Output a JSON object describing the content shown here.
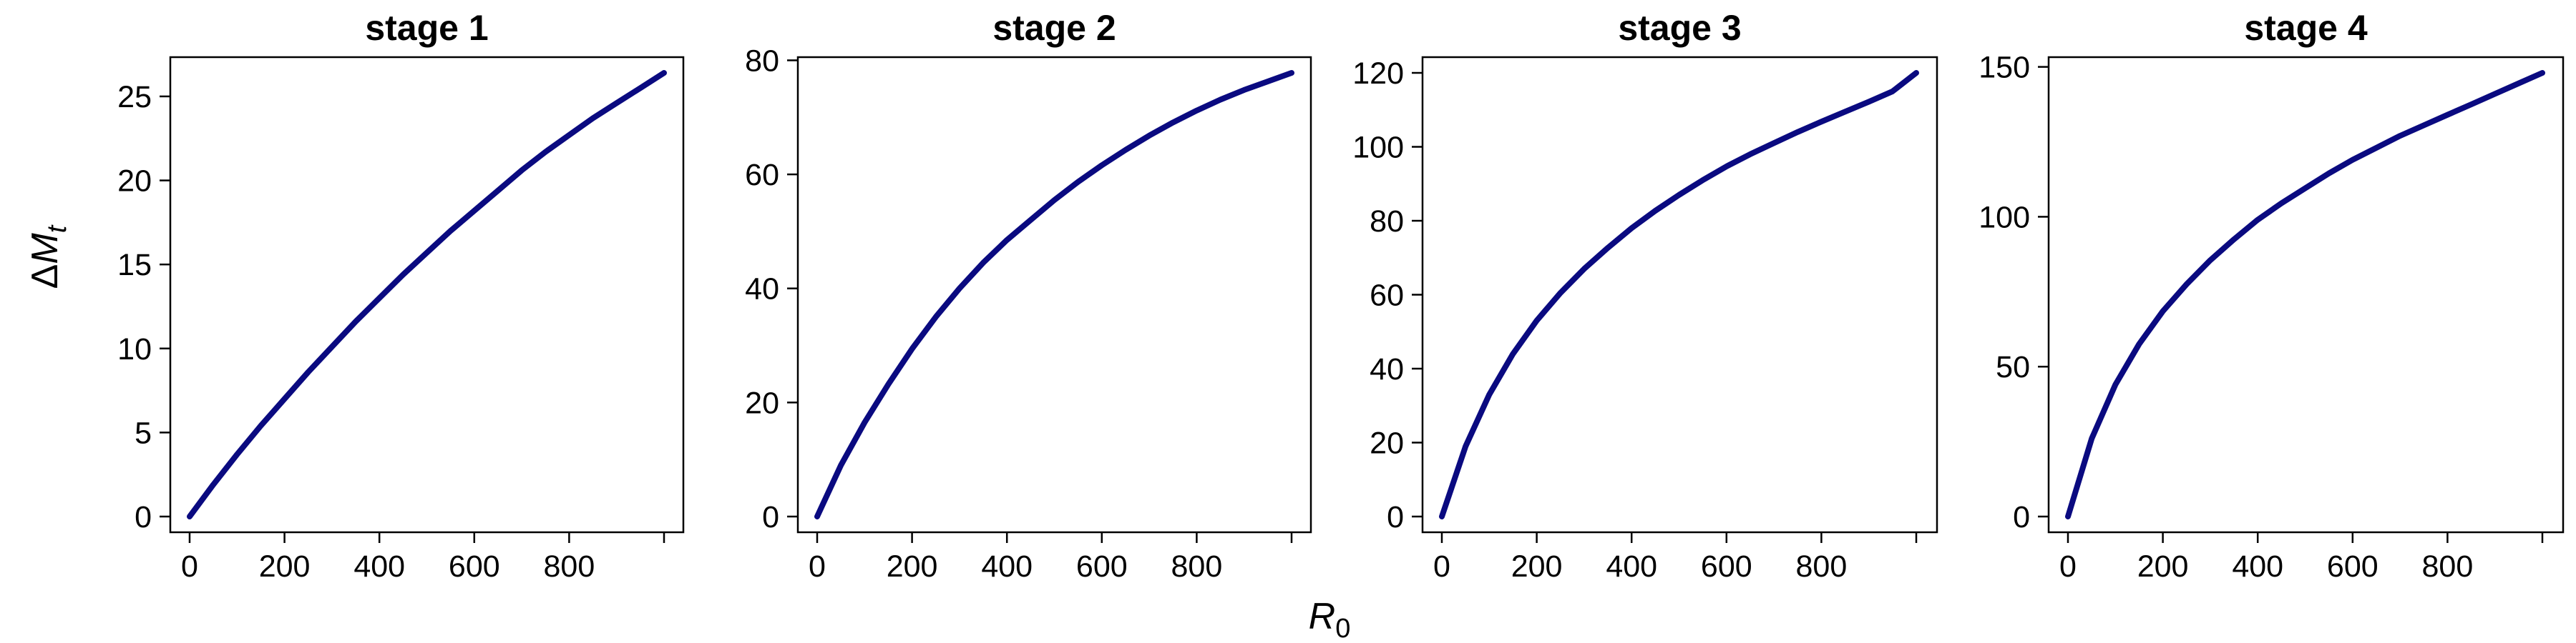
{
  "figure": {
    "ylabel_symbol": "Δ",
    "ylabel_var": "M",
    "ylabel_sub": "t",
    "xlabel_var": "R",
    "xlabel_sub": "0",
    "line_color": "#0a0a80"
  },
  "chart_data": [
    {
      "type": "line",
      "title": "stage 1",
      "xlim": [
        0,
        1000
      ],
      "ylim": [
        0,
        26.4
      ],
      "xticks": [
        0,
        200,
        400,
        600,
        800,
        1000
      ],
      "xtick_labels": [
        "0",
        "200",
        "400",
        "600",
        "800",
        ""
      ],
      "yticks": [
        0,
        5,
        10,
        15,
        20,
        25
      ],
      "series": [
        {
          "x": [
            0,
            50,
            100,
            150,
            200,
            250,
            300,
            350,
            400,
            450,
            500,
            550,
            600,
            650,
            700,
            750,
            800,
            850,
            900,
            950,
            1000
          ],
          "y": [
            0,
            1.9,
            3.7,
            5.4,
            7.0,
            8.6,
            10.1,
            11.6,
            13.0,
            14.4,
            15.7,
            17.0,
            18.2,
            19.4,
            20.6,
            21.7,
            22.7,
            23.7,
            24.6,
            25.5,
            26.4
          ]
        }
      ]
    },
    {
      "type": "line",
      "title": "stage 2",
      "xlim": [
        0,
        1000
      ],
      "ylim": [
        0,
        77.8
      ],
      "xticks": [
        0,
        200,
        400,
        600,
        800,
        1000
      ],
      "xtick_labels": [
        "0",
        "200",
        "400",
        "600",
        "800",
        ""
      ],
      "yticks": [
        0,
        20,
        40,
        60,
        80
      ],
      "series": [
        {
          "x": [
            0,
            50,
            100,
            150,
            200,
            250,
            300,
            350,
            400,
            450,
            500,
            550,
            600,
            650,
            700,
            750,
            800,
            850,
            900,
            950,
            1000
          ],
          "y": [
            0,
            9.0,
            16.5,
            23.2,
            29.4,
            35.0,
            40.0,
            44.5,
            48.5,
            52.0,
            55.5,
            58.7,
            61.6,
            64.3,
            66.8,
            69.1,
            71.2,
            73.1,
            74.8,
            76.3,
            77.8
          ]
        }
      ]
    },
    {
      "type": "line",
      "title": "stage 3",
      "xlim": [
        0,
        1000
      ],
      "ylim": [
        0,
        120
      ],
      "xticks": [
        0,
        200,
        400,
        600,
        800,
        1000
      ],
      "xtick_labels": [
        "0",
        "200",
        "400",
        "600",
        "800",
        ""
      ],
      "yticks": [
        0,
        20,
        40,
        60,
        80,
        100,
        120
      ],
      "series": [
        {
          "x": [
            0,
            50,
            100,
            150,
            200,
            250,
            300,
            350,
            400,
            450,
            500,
            550,
            600,
            650,
            700,
            750,
            800,
            850,
            900,
            950,
            1000
          ],
          "y": [
            0,
            19.0,
            33.0,
            44.0,
            53.0,
            60.5,
            67.0,
            72.7,
            78.0,
            82.7,
            87.0,
            91.0,
            94.7,
            98.0,
            101.0,
            104.0,
            106.8,
            109.5,
            112.2,
            115.0,
            120.0
          ]
        }
      ]
    },
    {
      "type": "line",
      "title": "stage 4",
      "xlim": [
        0,
        1000
      ],
      "ylim": [
        0,
        148
      ],
      "xticks": [
        0,
        200,
        400,
        600,
        800,
        1000
      ],
      "xtick_labels": [
        "0",
        "200",
        "400",
        "600",
        "800",
        ""
      ],
      "yticks": [
        0,
        50,
        100,
        150
      ],
      "series": [
        {
          "x": [
            0,
            50,
            100,
            150,
            200,
            250,
            300,
            350,
            400,
            450,
            500,
            550,
            600,
            650,
            700,
            750,
            800,
            850,
            900,
            950,
            1000
          ],
          "y": [
            0,
            26.0,
            44.0,
            57.5,
            68.5,
            77.5,
            85.5,
            92.5,
            99.0,
            104.5,
            109.5,
            114.5,
            119.0,
            123.0,
            127.0,
            130.5,
            134.0,
            137.5,
            141.0,
            144.5,
            148.0
          ]
        }
      ]
    }
  ]
}
